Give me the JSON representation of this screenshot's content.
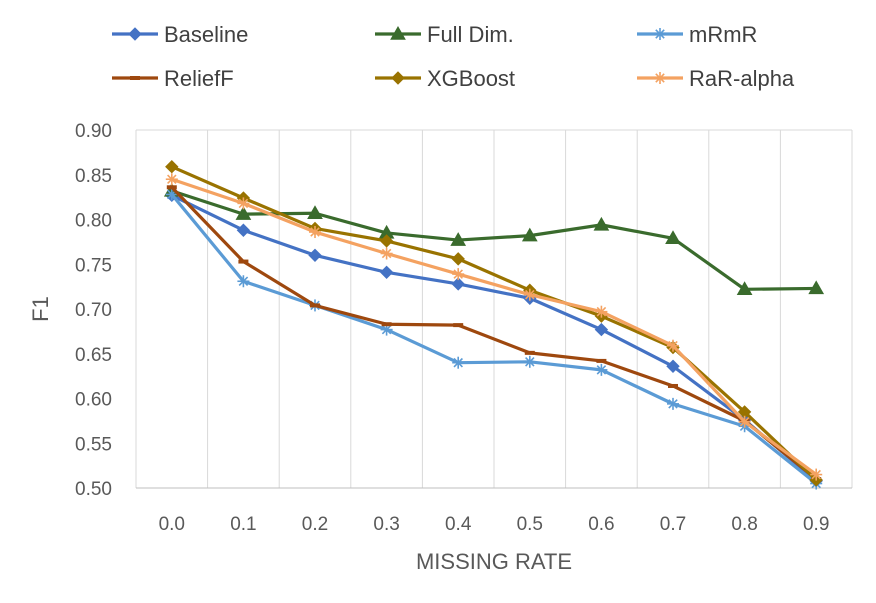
{
  "chart_data": {
    "type": "line",
    "title": "",
    "xlabel": "MISSING RATE",
    "ylabel": "F1",
    "categories": [
      "0.0",
      "0.1",
      "0.2",
      "0.3",
      "0.4",
      "0.5",
      "0.6",
      "0.7",
      "0.8",
      "0.9"
    ],
    "ylim": [
      0.5,
      0.9
    ],
    "yticks": [
      "0.50",
      "0.55",
      "0.60",
      "0.65",
      "0.70",
      "0.75",
      "0.80",
      "0.85",
      "0.90"
    ],
    "grid": "vertical",
    "legend_position": "top",
    "series": [
      {
        "name": "Baseline",
        "color": "#4472C4",
        "marker": "diamond",
        "values": [
          0.827,
          0.788,
          0.76,
          0.741,
          0.728,
          0.712,
          0.677,
          0.636,
          0.576,
          0.508
        ]
      },
      {
        "name": "Full Dim.",
        "color": "#3A6B2D",
        "marker": "triangle",
        "values": [
          0.832,
          0.806,
          0.807,
          0.785,
          0.777,
          0.782,
          0.794,
          0.779,
          0.722,
          0.723
        ]
      },
      {
        "name": "mRmR",
        "color": "#5B9BD5",
        "marker": "asterisk",
        "values": [
          0.828,
          0.731,
          0.704,
          0.677,
          0.64,
          0.641,
          0.632,
          0.594,
          0.569,
          0.505
        ]
      },
      {
        "name": "ReliefF",
        "color": "#9E480E",
        "marker": "dash",
        "values": [
          0.836,
          0.753,
          0.704,
          0.683,
          0.682,
          0.651,
          0.642,
          0.614,
          0.575,
          0.51
        ]
      },
      {
        "name": "XGBoost",
        "color": "#997300",
        "marker": "diamond",
        "values": [
          0.859,
          0.824,
          0.79,
          0.776,
          0.756,
          0.721,
          0.692,
          0.657,
          0.585,
          0.509
        ]
      },
      {
        "name": "RaR-alpha",
        "color": "#F4A261",
        "marker": "asterisk",
        "values": [
          0.845,
          0.818,
          0.786,
          0.762,
          0.739,
          0.716,
          0.697,
          0.659,
          0.574,
          0.515
        ]
      }
    ]
  }
}
